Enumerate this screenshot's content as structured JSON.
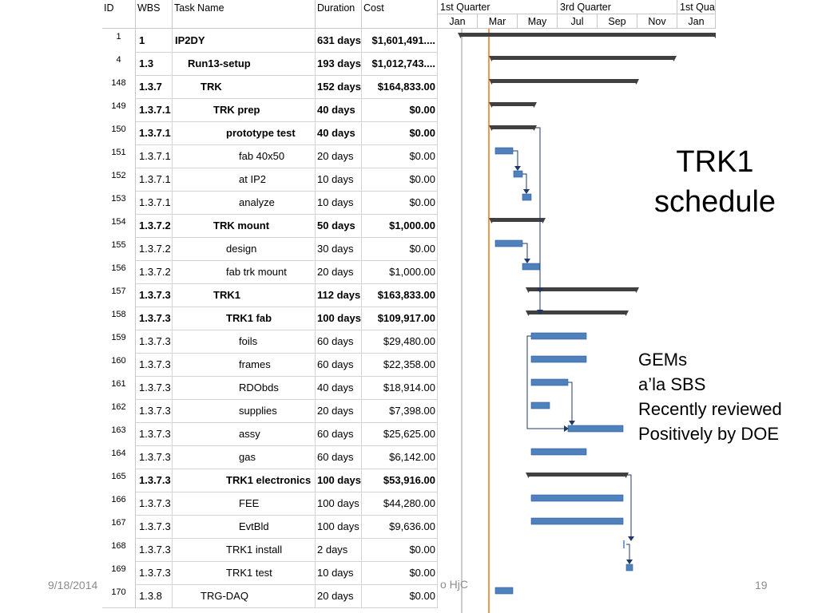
{
  "columns": {
    "id": "ID",
    "wbs": "WBS",
    "name": "Task Name",
    "duration": "Duration",
    "cost": "Cost"
  },
  "timescale": {
    "quarters": [
      "1st Quarter",
      "3rd Quarter",
      "1st Qua"
    ],
    "months": [
      "Jan",
      "Mar",
      "May",
      "Jul",
      "Sep",
      "Nov",
      "Jan"
    ]
  },
  "tasks": [
    {
      "id": "1",
      "wbs": "1",
      "name": "IP2DY",
      "duration": "631 days",
      "cost": "$1,601,491....",
      "bold": true,
      "indent": 0
    },
    {
      "id": "4",
      "wbs": "1.3",
      "name": "Run13-setup",
      "duration": "193 days",
      "cost": "$1,012,743....",
      "bold": true,
      "indent": 1
    },
    {
      "id": "148",
      "wbs": "1.3.7",
      "name": "TRK",
      "duration": "152 days",
      "cost": "$164,833.00",
      "bold": true,
      "indent": 2
    },
    {
      "id": "149",
      "wbs": "1.3.7.1",
      "name": "TRK prep",
      "duration": "40 days",
      "cost": "$0.00",
      "bold": true,
      "indent": 3
    },
    {
      "id": "150",
      "wbs": "1.3.7.1",
      "name": "prototype test",
      "duration": "40 days",
      "cost": "$0.00",
      "bold": true,
      "indent": 4
    },
    {
      "id": "151",
      "wbs": "1.3.7.1",
      "name": "fab 40x50",
      "duration": "20 days",
      "cost": "$0.00",
      "bold": false,
      "indent": 5
    },
    {
      "id": "152",
      "wbs": "1.3.7.1",
      "name": "at IP2",
      "duration": "10 days",
      "cost": "$0.00",
      "bold": false,
      "indent": 5
    },
    {
      "id": "153",
      "wbs": "1.3.7.1",
      "name": "analyze",
      "duration": "10 days",
      "cost": "$0.00",
      "bold": false,
      "indent": 5
    },
    {
      "id": "154",
      "wbs": "1.3.7.2",
      "name": "TRK mount",
      "duration": "50 days",
      "cost": "$1,000.00",
      "bold": true,
      "indent": 3
    },
    {
      "id": "155",
      "wbs": "1.3.7.2",
      "name": "design",
      "duration": "30 days",
      "cost": "$0.00",
      "bold": false,
      "indent": 4
    },
    {
      "id": "156",
      "wbs": "1.3.7.2",
      "name": "fab trk mount",
      "duration": "20 days",
      "cost": "$1,000.00",
      "bold": false,
      "indent": 4
    },
    {
      "id": "157",
      "wbs": "1.3.7.3",
      "name": "TRK1",
      "duration": "112 days",
      "cost": "$163,833.00",
      "bold": true,
      "indent": 3
    },
    {
      "id": "158",
      "wbs": "1.3.7.3",
      "name": "TRK1 fab",
      "duration": "100 days",
      "cost": "$109,917.00",
      "bold": true,
      "indent": 4
    },
    {
      "id": "159",
      "wbs": "1.3.7.3",
      "name": "foils",
      "duration": "60 days",
      "cost": "$29,480.00",
      "bold": false,
      "indent": 5
    },
    {
      "id": "160",
      "wbs": "1.3.7.3",
      "name": "frames",
      "duration": "60 days",
      "cost": "$22,358.00",
      "bold": false,
      "indent": 5
    },
    {
      "id": "161",
      "wbs": "1.3.7.3",
      "name": "RDObds",
      "duration": "40 days",
      "cost": "$18,914.00",
      "bold": false,
      "indent": 5
    },
    {
      "id": "162",
      "wbs": "1.3.7.3",
      "name": "supplies",
      "duration": "20 days",
      "cost": "$7,398.00",
      "bold": false,
      "indent": 5
    },
    {
      "id": "163",
      "wbs": "1.3.7.3",
      "name": "assy",
      "duration": "60 days",
      "cost": "$25,625.00",
      "bold": false,
      "indent": 5
    },
    {
      "id": "164",
      "wbs": "1.3.7.3",
      "name": "gas",
      "duration": "60 days",
      "cost": "$6,142.00",
      "bold": false,
      "indent": 5
    },
    {
      "id": "165",
      "wbs": "1.3.7.3",
      "name": "TRK1 electronics",
      "duration": "100 days",
      "cost": "$53,916.00",
      "bold": true,
      "indent": 4
    },
    {
      "id": "166",
      "wbs": "1.3.7.3",
      "name": "FEE",
      "duration": "100 days",
      "cost": "$44,280.00",
      "bold": false,
      "indent": 5
    },
    {
      "id": "167",
      "wbs": "1.3.7.3",
      "name": "EvtBld",
      "duration": "100 days",
      "cost": "$9,636.00",
      "bold": false,
      "indent": 5
    },
    {
      "id": "168",
      "wbs": "1.3.7.3",
      "name": "TRK1 install",
      "duration": "2 days",
      "cost": "$0.00",
      "bold": false,
      "indent": 4
    },
    {
      "id": "169",
      "wbs": "1.3.7.3",
      "name": "TRK1 test",
      "duration": "10 days",
      "cost": "$0.00",
      "bold": false,
      "indent": 4
    },
    {
      "id": "170",
      "wbs": "1.3.8",
      "name": "TRG-DAQ",
      "duration": "20 days",
      "cost": "$0.00",
      "bold": false,
      "indent": 2
    }
  ],
  "slide": {
    "title": "TRK1 schedule",
    "title_line1": "TRK1",
    "title_line2": "schedule",
    "note_lines": [
      "GEMs",
      "a’la SBS",
      "Recently reviewed",
      "Positively by DOE"
    ],
    "date": "9/18/2014",
    "footer_fragment": "o HjC",
    "page_number": "19"
  },
  "colors": {
    "task_bar": "#4f81bd",
    "summary_bar": "#404040",
    "status_line": "#f79646"
  }
}
